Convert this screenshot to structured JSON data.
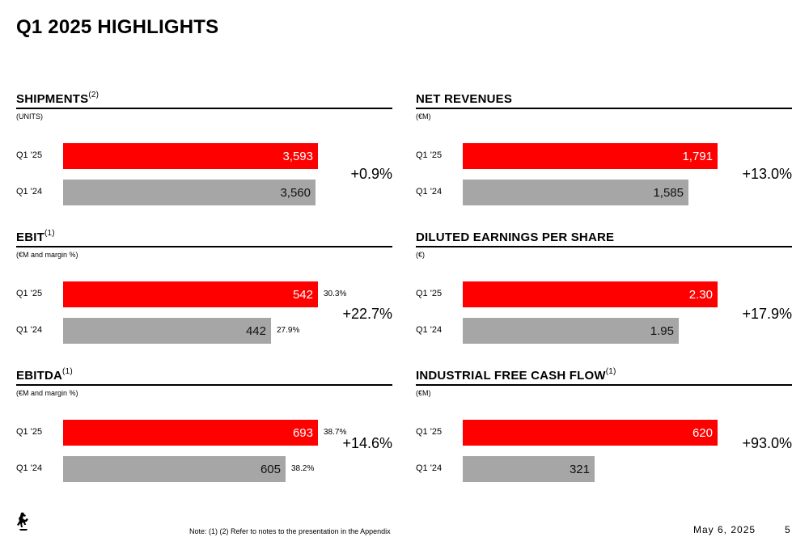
{
  "header": {
    "title": "Q1 2025 HIGHLIGHTS"
  },
  "chart_data": [
    {
      "type": "bar",
      "title": "SHIPMENTS",
      "title_sup": "(2)",
      "unit": "(UNITS)",
      "categories": [
        "Q1 '25",
        "Q1 '24"
      ],
      "values": [
        3593,
        3560
      ],
      "value_labels": [
        "3,593",
        "3,560"
      ],
      "margins": [],
      "change": "+0.9%"
    },
    {
      "type": "bar",
      "title": "NET REVENUES",
      "title_sup": "",
      "unit": "(€M)",
      "categories": [
        "Q1 '25",
        "Q1 '24"
      ],
      "values": [
        1791,
        1585
      ],
      "value_labels": [
        "1,791",
        "1,585"
      ],
      "margins": [],
      "change": "+13.0%"
    },
    {
      "type": "bar",
      "title": "EBIT",
      "title_sup": "(1)",
      "unit": "(€M and margin %)",
      "categories": [
        "Q1 '25",
        "Q1 '24"
      ],
      "values": [
        542,
        442
      ],
      "value_labels": [
        "542",
        "442"
      ],
      "margins": [
        "30.3%",
        "27.9%"
      ],
      "change": "+22.7%"
    },
    {
      "type": "bar",
      "title": "DILUTED EARNINGS PER SHARE",
      "title_sup": "",
      "unit": "(€)",
      "categories": [
        "Q1 '25",
        "Q1 '24"
      ],
      "values": [
        2.3,
        1.95
      ],
      "value_labels": [
        "2.30",
        "1.95"
      ],
      "margins": [],
      "change": "+17.9%"
    },
    {
      "type": "bar",
      "title": "EBITDA",
      "title_sup": "(1)",
      "unit": "(€M and margin %)",
      "categories": [
        "Q1 '25",
        "Q1 '24"
      ],
      "values": [
        693,
        605
      ],
      "value_labels": [
        "693",
        "605"
      ],
      "margins": [
        "38.7%",
        "38.2%"
      ],
      "change": "+14.6%"
    },
    {
      "type": "bar",
      "title": "INDUSTRIAL FREE CASH FLOW",
      "title_sup": "(1)",
      "unit": "(€M)",
      "categories": [
        "Q1 '25",
        "Q1 '24"
      ],
      "values": [
        620,
        321
      ],
      "value_labels": [
        "620",
        "321"
      ],
      "margins": [],
      "change": "+93.0%"
    }
  ],
  "colors": {
    "current": "#ff0000",
    "previous": "#a6a6a6"
  },
  "footer": {
    "logo_icon": "prancing-horse-logo",
    "note": "Note: (1) (2) Refer to notes to the presentation in the Appendix",
    "date": "May 6, 2025",
    "page_number": "5"
  }
}
